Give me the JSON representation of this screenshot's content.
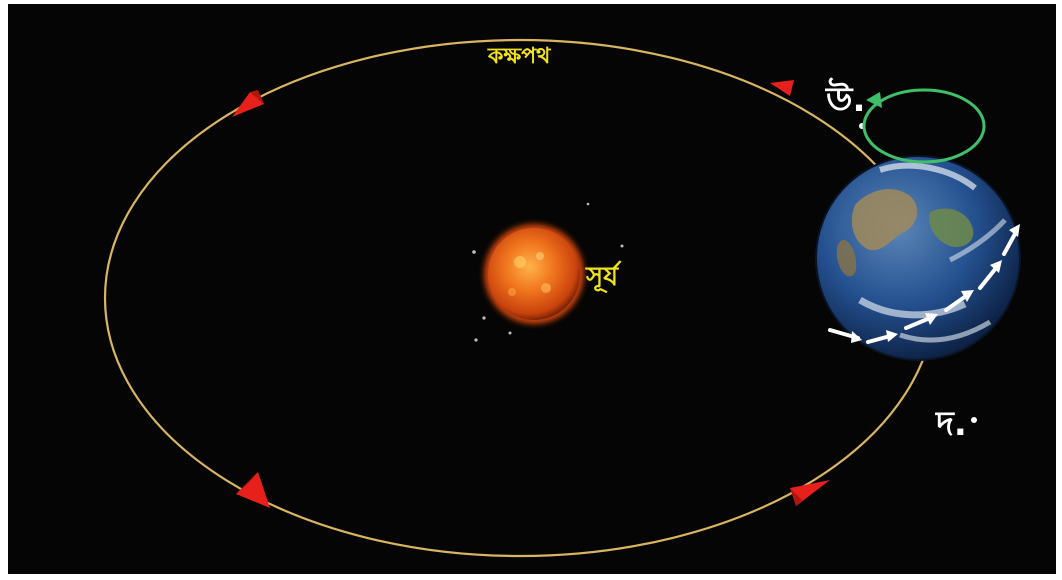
{
  "labels": {
    "orbit": "কক্ষপথ",
    "sun": "সূর্য",
    "north": "উ.",
    "south": "দ."
  },
  "colors": {
    "background": "#050505",
    "orbit": "#d8b560",
    "direction_arrows": "#e8201c",
    "orbit_label": "#f2e21a",
    "sun_label": "#f2e21a",
    "pole_labels": "#ffffff",
    "rotation_arrow": "#3fbf6a",
    "earth_surface_arrows": "#ffffff"
  },
  "icons": {
    "sun": "sun-image",
    "earth": "earth-globe-image"
  }
}
